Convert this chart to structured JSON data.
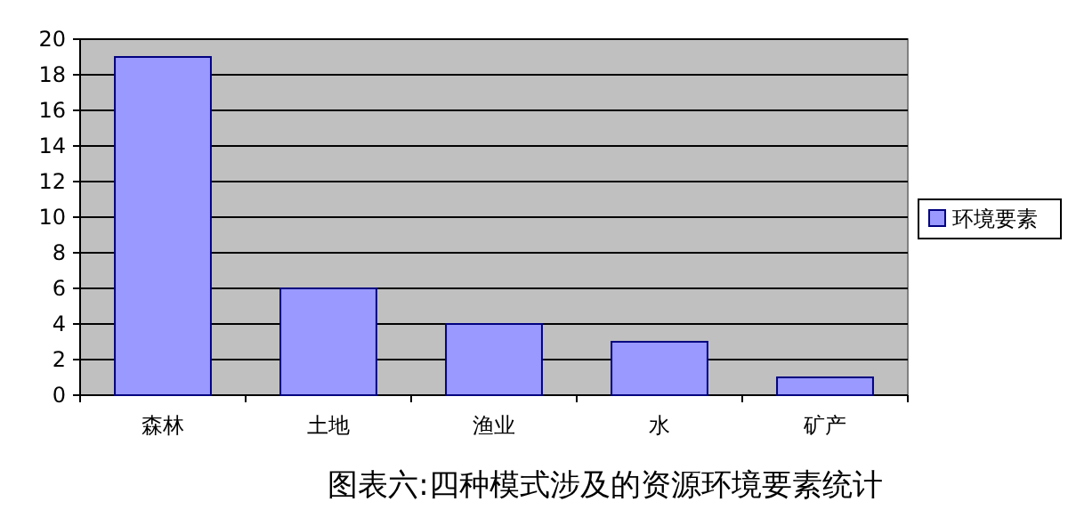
{
  "chart_data": {
    "type": "bar",
    "title": "图表六:四种模式涉及的资源环境要素统计",
    "categories": [
      "森林",
      "土地",
      "渔业",
      "水",
      "矿产"
    ],
    "series": [
      {
        "name": "环境要素",
        "color": "#9999ff",
        "values": [
          19,
          6,
          4,
          3,
          1
        ]
      }
    ],
    "ylim": [
      0,
      20
    ],
    "yticks": [
      0,
      2,
      4,
      6,
      8,
      10,
      12,
      14,
      16,
      18,
      20
    ],
    "grid": "y",
    "legend": "right"
  }
}
